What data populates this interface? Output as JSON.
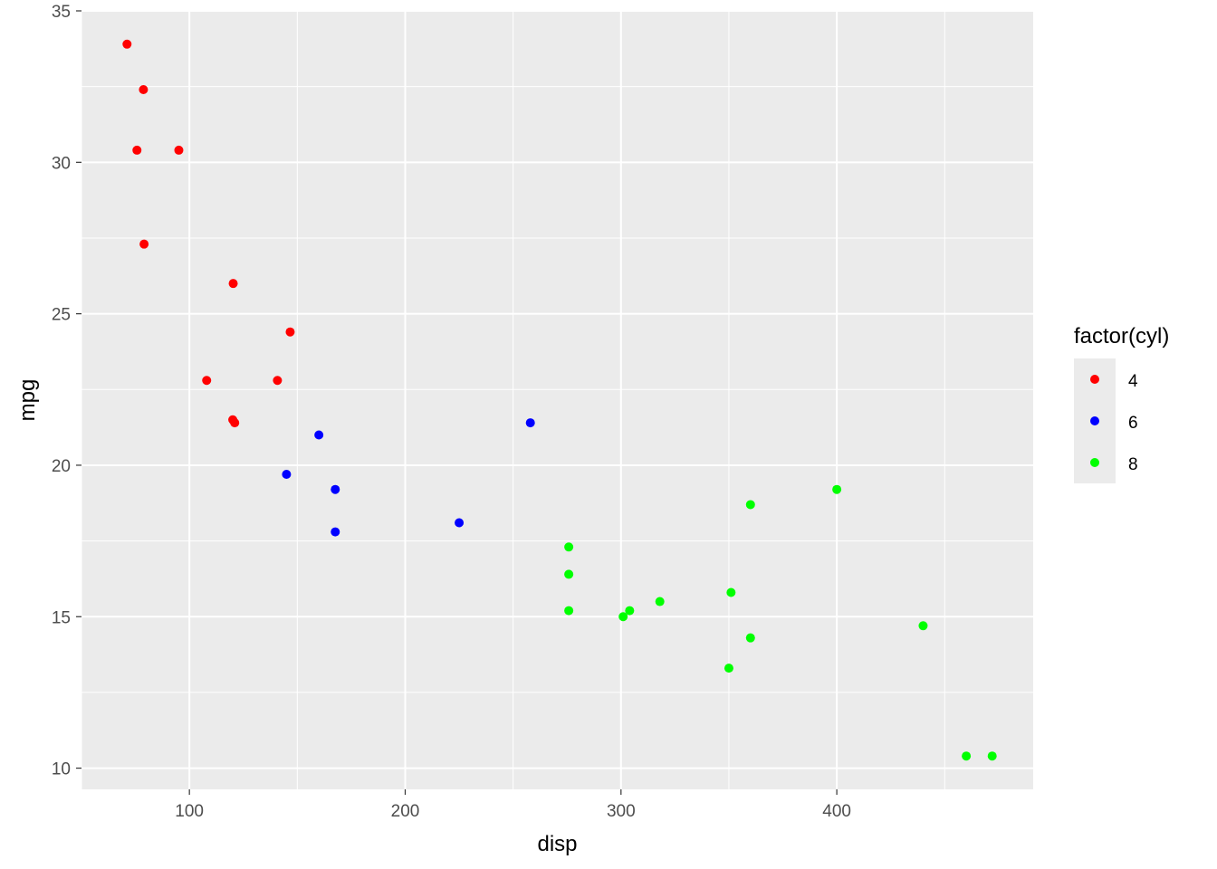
{
  "chart_data": {
    "type": "scatter",
    "title": "",
    "xlabel": "disp",
    "ylabel": "mpg",
    "xlim": [
      50.0,
      491.0
    ],
    "ylim": [
      9.3,
      35.0
    ],
    "x_ticks": [
      100,
      200,
      300,
      400
    ],
    "y_ticks": [
      10,
      15,
      20,
      25,
      30,
      35
    ],
    "grid": true,
    "background": "#ebebeb",
    "legend": {
      "title": "factor(cyl)",
      "placement": "right"
    },
    "series": [
      {
        "name": "4",
        "color": "#ff0000",
        "points": [
          [
            108,
            22.8
          ],
          [
            146.7,
            24.4
          ],
          [
            140.8,
            22.8
          ],
          [
            78.7,
            32.4
          ],
          [
            75.7,
            30.4
          ],
          [
            71.1,
            33.9
          ],
          [
            120.1,
            21.5
          ],
          [
            79,
            27.3
          ],
          [
            120.3,
            26.0
          ],
          [
            95.1,
            30.4
          ],
          [
            121,
            21.4
          ]
        ]
      },
      {
        "name": "6",
        "color": "#0000ff",
        "points": [
          [
            160,
            21.0
          ],
          [
            258,
            21.4
          ],
          [
            225,
            18.1
          ],
          [
            167.6,
            19.2
          ],
          [
            167.6,
            17.8
          ],
          [
            145,
            19.7
          ]
        ]
      },
      {
        "name": "8",
        "color": "#00ff00",
        "points": [
          [
            360,
            18.7
          ],
          [
            360,
            14.3
          ],
          [
            275.8,
            16.4
          ],
          [
            275.8,
            17.3
          ],
          [
            275.8,
            15.2
          ],
          [
            472,
            10.4
          ],
          [
            460,
            10.4
          ],
          [
            440,
            14.7
          ],
          [
            318,
            15.5
          ],
          [
            304,
            15.2
          ],
          [
            350,
            13.3
          ],
          [
            400,
            19.2
          ],
          [
            351,
            15.8
          ],
          [
            301,
            15.0
          ]
        ]
      }
    ]
  }
}
